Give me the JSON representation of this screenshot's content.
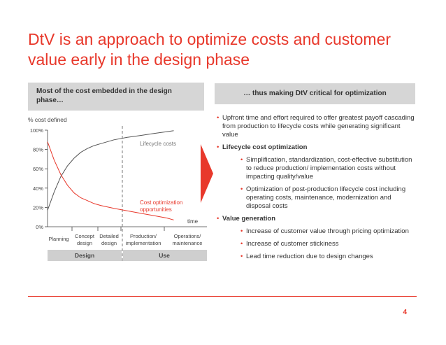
{
  "title": "DtV is an approach to optimize costs and customer value early in the design phase",
  "left_header": "Most of the cost embedded in the design phase…",
  "right_header": "… thus making DtV critical for optimization",
  "bullets": [
    {
      "text": "Upfront time and effort required to offer greatest payoff cascading from production to lifecycle costs while generating significant value",
      "bold": false,
      "sub": []
    },
    {
      "text": "Lifecycle cost optimization",
      "bold": true,
      "sub": [
        "Simplification, standardization, cost-effective substitution to reduce production/ implementation costs without impacting quality/value",
        "Optimization of post-production lifecycle cost including operating costs, maintenance, modernization and disposal costs"
      ]
    },
    {
      "text": "Value generation",
      "bold": true,
      "sub": [
        "Increase of customer value through pricing optimization",
        "Increase of customer stickiness",
        "Lead time reduction due to design changes"
      ]
    }
  ],
  "page_number": "4",
  "chart_data": {
    "type": "line",
    "ylabel": "% cost defined",
    "xlabel": "time",
    "ylim": [
      0,
      100
    ],
    "yticks": [
      "0%",
      "20%",
      "40%",
      "60%",
      "80%",
      "100%"
    ],
    "ytick_values": [
      0,
      20,
      40,
      60,
      80,
      100
    ],
    "phases": [
      "Planning",
      "Concept design",
      "Detailed design",
      "Production/ implementation",
      "Operations/ maintenance"
    ],
    "groups": [
      {
        "name": "Design",
        "phases": [
          "Planning",
          "Concept design",
          "Detailed design"
        ]
      },
      {
        "name": "Use",
        "phases": [
          "Production/ implementation",
          "Operations/ maintenance"
        ]
      }
    ],
    "divider_after_phase": "Detailed design",
    "x_range": [
      0,
      1
    ],
    "series": [
      {
        "name": "Lifecycle costs",
        "color": "#555555",
        "x": [
          0,
          0.05,
          0.1,
          0.15,
          0.2,
          0.25,
          0.3,
          0.35,
          0.4,
          0.5,
          0.6,
          0.7,
          0.8,
          0.9,
          0.95
        ],
        "y": [
          17,
          36,
          52,
          63,
          71,
          77,
          81,
          84,
          86,
          90,
          92.5,
          94.5,
          96.5,
          98.5,
          99.5
        ]
      },
      {
        "name": "Cost optimization opportunities",
        "color": "#e8382b",
        "x": [
          0,
          0.05,
          0.1,
          0.15,
          0.2,
          0.25,
          0.3,
          0.35,
          0.4,
          0.5,
          0.6,
          0.7,
          0.8,
          0.9,
          0.95
        ],
        "y": [
          88,
          69,
          54,
          43,
          35,
          30,
          27,
          24,
          22,
          19,
          16.5,
          14,
          11.5,
          9,
          7
        ]
      }
    ]
  }
}
